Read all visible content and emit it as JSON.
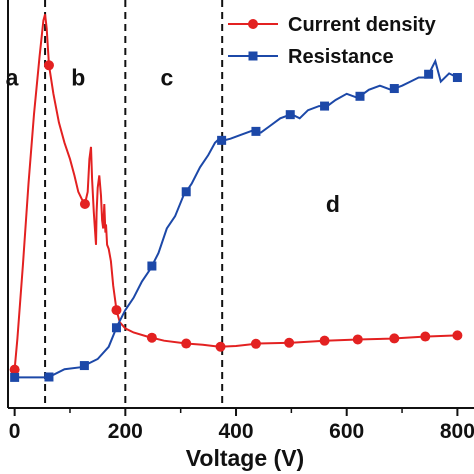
{
  "chart_data": {
    "type": "line",
    "title": "",
    "xlabel": "Voltage (V)",
    "ylabel": "",
    "xlim": [
      -12,
      830
    ],
    "ylim": [
      0,
      1
    ],
    "x_ticks": [
      0,
      200,
      400,
      600,
      800
    ],
    "x_tick_labels": [
      "0",
      "200",
      "400",
      "600",
      "800"
    ],
    "y_ticks_visible": false,
    "grid": false,
    "legend_position": "top-right",
    "vlines": [
      55,
      200,
      375
    ],
    "region_labels": [
      {
        "label": "a",
        "x": -40,
        "y": 0.79
      },
      {
        "label": "b",
        "x": 115,
        "y": 0.79
      },
      {
        "label": "c",
        "x": 275,
        "y": 0.79
      },
      {
        "label": "d",
        "x": 575,
        "y": 0.48
      }
    ],
    "series": [
      {
        "name": "Current density",
        "color": "#e32121",
        "marker": "circle",
        "points": [
          [
            0,
            0.094
          ],
          [
            5,
            0.17
          ],
          [
            15,
            0.35
          ],
          [
            25,
            0.55
          ],
          [
            35,
            0.72
          ],
          [
            45,
            0.86
          ],
          [
            52,
            0.95
          ],
          [
            55,
            0.965
          ],
          [
            58,
            0.93
          ],
          [
            62,
            0.84
          ],
          [
            70,
            0.77
          ],
          [
            80,
            0.7
          ],
          [
            90,
            0.65
          ],
          [
            100,
            0.61
          ],
          [
            108,
            0.57
          ],
          [
            115,
            0.53
          ],
          [
            122,
            0.51
          ],
          [
            127,
            0.5
          ],
          [
            132,
            0.53
          ],
          [
            135,
            0.61
          ],
          [
            138,
            0.64
          ],
          [
            140,
            0.56
          ],
          [
            143,
            0.48
          ],
          [
            145,
            0.44
          ],
          [
            147,
            0.4
          ],
          [
            148,
            0.48
          ],
          [
            150,
            0.54
          ],
          [
            153,
            0.57
          ],
          [
            156,
            0.52
          ],
          [
            158,
            0.46
          ],
          [
            160,
            0.44
          ],
          [
            162,
            0.5
          ],
          [
            164,
            0.43
          ],
          [
            165,
            0.45
          ],
          [
            167,
            0.4
          ],
          [
            170,
            0.39
          ],
          [
            174,
            0.36
          ],
          [
            178,
            0.3
          ],
          [
            184,
            0.24
          ],
          [
            190,
            0.21
          ],
          [
            200,
            0.195
          ],
          [
            215,
            0.185
          ],
          [
            240,
            0.175
          ],
          [
            270,
            0.165
          ],
          [
            310,
            0.158
          ],
          [
            340,
            0.155
          ],
          [
            370,
            0.15
          ],
          [
            400,
            0.152
          ],
          [
            440,
            0.158
          ],
          [
            500,
            0.16
          ],
          [
            560,
            0.165
          ],
          [
            620,
            0.168
          ],
          [
            680,
            0.17
          ],
          [
            740,
            0.175
          ],
          [
            800,
            0.178
          ]
        ],
        "marker_x": [
          0,
          62,
          127,
          184,
          248,
          310,
          372,
          436,
          496,
          560,
          620,
          686,
          742,
          800
        ]
      },
      {
        "name": "Resistance",
        "color": "#1c48a8",
        "marker": "square",
        "points": [
          [
            0,
            0.075
          ],
          [
            55,
            0.075
          ],
          [
            62,
            0.076
          ],
          [
            90,
            0.095
          ],
          [
            120,
            0.1
          ],
          [
            150,
            0.12
          ],
          [
            170,
            0.15
          ],
          [
            185,
            0.2
          ],
          [
            200,
            0.24
          ],
          [
            215,
            0.27
          ],
          [
            230,
            0.31
          ],
          [
            245,
            0.34
          ],
          [
            260,
            0.38
          ],
          [
            275,
            0.44
          ],
          [
            290,
            0.47
          ],
          [
            305,
            0.52
          ],
          [
            320,
            0.55
          ],
          [
            335,
            0.59
          ],
          [
            350,
            0.62
          ],
          [
            362,
            0.65
          ],
          [
            370,
            0.66
          ],
          [
            375,
            0.655
          ],
          [
            390,
            0.66
          ],
          [
            410,
            0.67
          ],
          [
            430,
            0.68
          ],
          [
            445,
            0.675
          ],
          [
            460,
            0.69
          ],
          [
            480,
            0.71
          ],
          [
            500,
            0.72
          ],
          [
            515,
            0.71
          ],
          [
            530,
            0.73
          ],
          [
            550,
            0.74
          ],
          [
            565,
            0.74
          ],
          [
            580,
            0.755
          ],
          [
            600,
            0.77
          ],
          [
            620,
            0.76
          ],
          [
            640,
            0.78
          ],
          [
            660,
            0.79
          ],
          [
            680,
            0.78
          ],
          [
            700,
            0.79
          ],
          [
            715,
            0.8
          ],
          [
            730,
            0.81
          ],
          [
            745,
            0.81
          ],
          [
            760,
            0.85
          ],
          [
            770,
            0.8
          ],
          [
            785,
            0.82
          ],
          [
            800,
            0.81
          ]
        ],
        "marker_x": [
          0,
          62,
          126,
          184,
          248,
          310,
          374,
          436,
          498,
          560,
          624,
          686,
          748,
          800
        ]
      }
    ]
  }
}
